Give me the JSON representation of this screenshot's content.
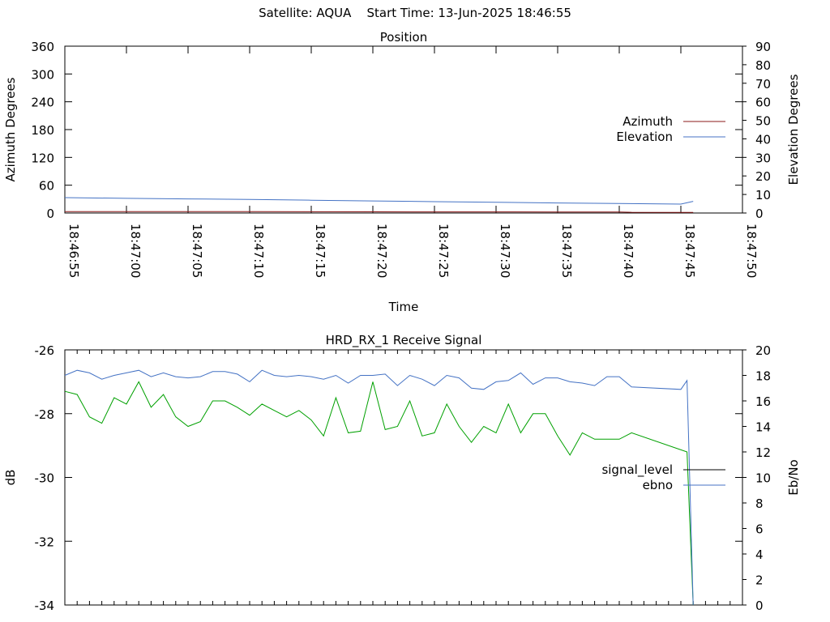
{
  "header": {
    "title": "Satellite: AQUA    Start Time: 13-Jun-2025 18:46:55"
  },
  "chart_data": [
    {
      "type": "line",
      "title": "Position",
      "xlabel": "Time",
      "ylabel": "Azimuth Degrees",
      "y2label": "Elevation Degrees",
      "x_tick_labels": [
        "18:46:55",
        "18:47:00",
        "18:47:05",
        "18:47:10",
        "18:47:15",
        "18:47:20",
        "18:47:25",
        "18:47:30",
        "18:47:35",
        "18:47:40",
        "18:47:45",
        "18:47:50"
      ],
      "xlim": [
        0,
        55
      ],
      "ylim": [
        0,
        360
      ],
      "y_ticks": [
        "0",
        "60",
        "120",
        "180",
        "240",
        "300",
        "360"
      ],
      "y2lim": [
        0,
        90
      ],
      "y2_ticks": [
        "0",
        "10",
        "20",
        "30",
        "40",
        "50",
        "60",
        "70",
        "80",
        "90"
      ],
      "grid": false,
      "legend_position": "right",
      "series": [
        {
          "name": "Azimuth",
          "axis": "y",
          "color": "#8b1a1a",
          "x": [
            0,
            5,
            10,
            15,
            20,
            25,
            30,
            35,
            40,
            45,
            46,
            51
          ],
          "y": [
            3.2,
            3.1,
            3.0,
            2.9,
            2.8,
            2.6,
            2.5,
            2.4,
            2.3,
            2.2,
            1.5,
            1.2
          ]
        },
        {
          "name": "Elevation",
          "axis": "y2",
          "color": "#4472c4",
          "x": [
            0,
            5,
            10,
            15,
            20,
            25,
            30,
            35,
            40,
            45,
            50,
            51
          ],
          "y": [
            8.3,
            7.9,
            7.6,
            7.3,
            6.9,
            6.5,
            6.1,
            5.8,
            5.4,
            5.1,
            4.8,
            6.3
          ]
        }
      ]
    },
    {
      "type": "line",
      "title": "HRD_RX_1 Receive Signal",
      "ylabel": "dB",
      "y2label": "Eb/No",
      "xlim": [
        0,
        55
      ],
      "ylim": [
        -34,
        -26
      ],
      "y_ticks": [
        "-26",
        "-28",
        "-30",
        "-32",
        "-34"
      ],
      "y2lim": [
        0,
        20
      ],
      "y2_ticks": [
        "0",
        "2",
        "4",
        "6",
        "8",
        "10",
        "12",
        "14",
        "16",
        "18",
        "20"
      ],
      "grid": false,
      "legend_position": "right",
      "series": [
        {
          "name": "signal_level",
          "axis": "y",
          "color": "#00a000",
          "x": [
            0,
            1,
            2,
            3,
            4,
            5,
            6,
            7,
            8,
            9,
            10,
            11,
            12,
            13,
            14,
            15,
            16,
            17,
            18,
            19,
            20,
            21,
            22,
            23,
            24,
            25,
            26,
            27,
            28,
            29,
            30,
            31,
            32,
            33,
            34,
            35,
            36,
            37,
            38,
            39,
            40,
            41,
            42,
            43,
            44,
            45,
            46,
            50.5,
            51
          ],
          "y": [
            -27.3,
            -27.4,
            -28.1,
            -28.3,
            -27.5,
            -27.7,
            -27.0,
            -27.8,
            -27.4,
            -28.1,
            -28.4,
            -28.25,
            -27.6,
            -27.6,
            -27.8,
            -28.05,
            -27.7,
            -27.9,
            -28.1,
            -27.9,
            -28.2,
            -28.7,
            -27.5,
            -28.6,
            -28.55,
            -27.0,
            -28.5,
            -28.4,
            -27.6,
            -28.7,
            -28.6,
            -27.7,
            -28.4,
            -28.9,
            -28.4,
            -28.6,
            -27.7,
            -28.6,
            -28.0,
            -28.0,
            -28.7,
            -29.3,
            -28.6,
            -28.8,
            -28.8,
            -28.8,
            -28.6,
            -29.2,
            -34.0
          ]
        },
        {
          "name": "ebno",
          "axis": "y2",
          "color": "#4472c4",
          "x": [
            0,
            1,
            2,
            3,
            4,
            5,
            6,
            7,
            8,
            9,
            10,
            11,
            12,
            13,
            14,
            15,
            16,
            17,
            18,
            19,
            20,
            21,
            22,
            23,
            24,
            25,
            26,
            27,
            28,
            29,
            30,
            31,
            32,
            33,
            34,
            35,
            36,
            37,
            38,
            39,
            40,
            41,
            42,
            43,
            44,
            45,
            46,
            50,
            50.5,
            51
          ],
          "y": [
            18.0,
            18.4,
            18.2,
            17.7,
            18.0,
            18.2,
            18.4,
            17.9,
            18.2,
            17.9,
            17.8,
            17.9,
            18.3,
            18.3,
            18.1,
            17.5,
            18.4,
            18.0,
            17.9,
            18.0,
            17.9,
            17.7,
            18.0,
            17.4,
            18.0,
            18.0,
            18.1,
            17.2,
            18.0,
            17.7,
            17.2,
            18.0,
            17.8,
            17.0,
            16.9,
            17.5,
            17.6,
            18.2,
            17.3,
            17.8,
            17.8,
            17.5,
            17.4,
            17.2,
            17.9,
            17.9,
            17.1,
            16.9,
            17.6,
            0.0
          ]
        }
      ]
    }
  ]
}
